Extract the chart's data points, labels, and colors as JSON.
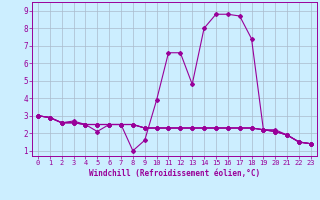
{
  "xlabel": "Windchill (Refroidissement éolien,°C)",
  "ylabel": "",
  "xlim": [
    -0.5,
    23.5
  ],
  "ylim": [
    0.7,
    9.5
  ],
  "xticks": [
    0,
    1,
    2,
    3,
    4,
    5,
    6,
    7,
    8,
    9,
    10,
    11,
    12,
    13,
    14,
    15,
    16,
    17,
    18,
    19,
    20,
    21,
    22,
    23
  ],
  "yticks": [
    1,
    2,
    3,
    4,
    5,
    6,
    7,
    8,
    9
  ],
  "bg_color": "#cceeff",
  "line_color": "#990099",
  "grid_color": "#aabbcc",
  "series": [
    [
      3.0,
      2.9,
      2.6,
      2.6,
      2.5,
      2.1,
      2.5,
      2.5,
      1.0,
      1.6,
      3.9,
      6.6,
      6.6,
      4.8,
      8.0,
      8.8,
      8.8,
      8.7,
      7.4,
      2.2,
      2.2,
      1.9,
      1.5,
      1.4
    ],
    [
      3.0,
      2.9,
      2.6,
      2.7,
      2.5,
      2.5,
      2.5,
      2.5,
      2.5,
      2.3,
      2.3,
      2.3,
      2.3,
      2.3,
      2.3,
      2.3,
      2.3,
      2.3,
      2.3,
      2.2,
      2.1,
      1.9,
      1.5,
      1.4
    ],
    [
      3.0,
      2.9,
      2.6,
      2.6,
      2.5,
      2.5,
      2.5,
      2.5,
      2.5,
      2.3,
      2.3,
      2.3,
      2.3,
      2.3,
      2.3,
      2.3,
      2.3,
      2.3,
      2.3,
      2.2,
      2.1,
      1.9,
      1.5,
      1.4
    ],
    [
      3.0,
      2.9,
      2.6,
      2.6,
      2.5,
      2.5,
      2.5,
      2.5,
      2.5,
      2.3,
      2.3,
      2.3,
      2.3,
      2.3,
      2.3,
      2.3,
      2.3,
      2.3,
      2.3,
      2.2,
      2.1,
      1.9,
      1.5,
      1.4
    ]
  ],
  "marker": "D",
  "markersize": 2.0,
  "linewidth": 0.8,
  "tick_fontsize": 5.0,
  "xlabel_fontsize": 5.5
}
